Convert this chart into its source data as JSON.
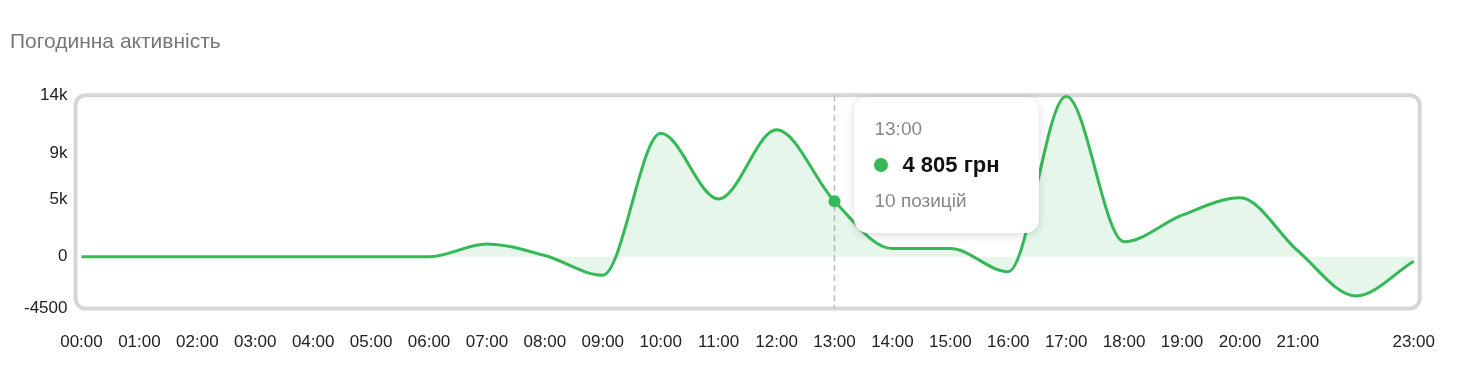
{
  "chart_data": {
    "type": "area",
    "title": "Погодинна активність",
    "categories": [
      "00:00",
      "01:00",
      "02:00",
      "03:00",
      "04:00",
      "05:00",
      "06:00",
      "07:00",
      "08:00",
      "09:00",
      "10:00",
      "11:00",
      "12:00",
      "13:00",
      "14:00",
      "15:00",
      "16:00",
      "17:00",
      "18:00",
      "19:00",
      "20:00",
      "21:00",
      null,
      "23:00"
    ],
    "series": [
      {
        "color": "#34b956",
        "values": [
          0,
          0,
          0,
          0,
          0,
          0,
          0,
          1100,
          100,
          -1600,
          10700,
          5000,
          11000,
          4805,
          700,
          700,
          -1300,
          13900,
          1300,
          3600,
          5100,
          500,
          -3400,
          -400
        ]
      }
    ],
    "ylim": [
      -4500,
      14000
    ],
    "yticks": [
      {
        "value": -4500,
        "label": "-4500"
      },
      0,
      {
        "value": 5000,
        "label": "5k"
      },
      {
        "value": 9000,
        "label": "9k"
      },
      {
        "value": 14000,
        "label": "14k"
      }
    ],
    "grid": false,
    "legend": false,
    "marker": "none",
    "line_style": "solid",
    "ref_lines": [
      {
        "axis": "x",
        "value": "13:00",
        "color": "#bbbbbb",
        "line_style": "dashed"
      }
    ],
    "annotations": [
      "13:00",
      "4 805 грн",
      "10 позицій"
    ]
  }
}
